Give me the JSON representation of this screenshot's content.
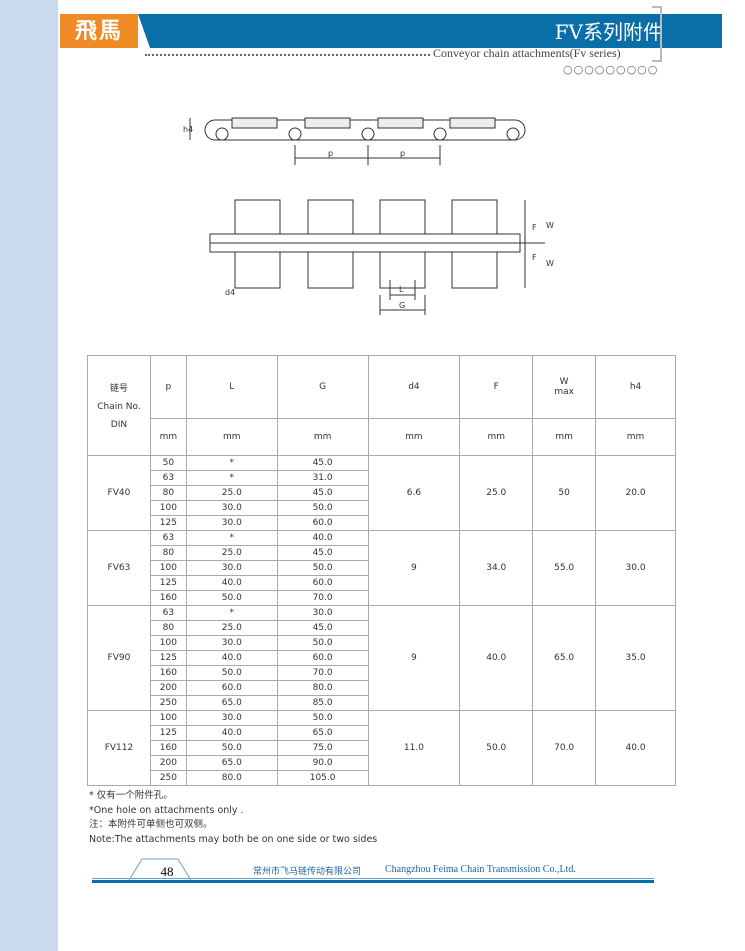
{
  "header": {
    "logo": "飛馬",
    "title": "FV系列附件",
    "subtitle": "Conveyor chain attachments(Fv series)",
    "circles": "○○○○○○○○○"
  },
  "drawing": {
    "labels": {
      "h4": "h4",
      "p": "p",
      "F": "F",
      "W": "W",
      "d4": "d4",
      "L": "L",
      "G": "G"
    }
  },
  "table": {
    "headers": {
      "chain_cn": "链号",
      "chain_en": "Chain No.",
      "din": "DIN",
      "p": "p",
      "L": "L",
      "G": "G",
      "d4": "d4",
      "F": "F",
      "W": "W",
      "W_sub": "max",
      "h4": "h4"
    },
    "unit": "mm",
    "groups": [
      {
        "chain": "FV40",
        "d4": "6.6",
        "F": "25.0",
        "W": "50",
        "h4": "20.0",
        "rows": [
          [
            "50",
            "*",
            "45.0"
          ],
          [
            "63",
            "*",
            "31.0"
          ],
          [
            "80",
            "25.0",
            "45.0"
          ],
          [
            "100",
            "30.0",
            "50.0"
          ],
          [
            "125",
            "30.0",
            "60.0"
          ]
        ]
      },
      {
        "chain": "FV63",
        "d4": "9",
        "F": "34.0",
        "W": "55.0",
        "h4": "30.0",
        "rows": [
          [
            "63",
            "*",
            "40.0"
          ],
          [
            "80",
            "25.0",
            "45.0"
          ],
          [
            "100",
            "30.0",
            "50.0"
          ],
          [
            "125",
            "40.0",
            "60.0"
          ],
          [
            "160",
            "50.0",
            "70.0"
          ]
        ]
      },
      {
        "chain": "FV90",
        "d4": "9",
        "F": "40.0",
        "W": "65.0",
        "h4": "35.0",
        "rows": [
          [
            "63",
            "*",
            "30.0"
          ],
          [
            "80",
            "25.0",
            "45.0"
          ],
          [
            "100",
            "30.0",
            "50.0"
          ],
          [
            "125",
            "40.0",
            "60.0"
          ],
          [
            "160",
            "50.0",
            "70.0"
          ],
          [
            "200",
            "60.0",
            "80.0"
          ],
          [
            "250",
            "65.0",
            "85.0"
          ]
        ]
      },
      {
        "chain": "FV112",
        "d4": "11.0",
        "F": "50.0",
        "W": "70.0",
        "h4": "40.0",
        "rows": [
          [
            "100",
            "30.0",
            "50.0"
          ],
          [
            "125",
            "40.0",
            "65.0"
          ],
          [
            "160",
            "50.0",
            "75.0"
          ],
          [
            "200",
            "65.0",
            "90.0"
          ],
          [
            "250",
            "80.0",
            "105.0"
          ]
        ]
      }
    ]
  },
  "notes": [
    "* 仅有一个附件孔。",
    "*One hole on attachments only .",
    "注：本附件可单侧也可双侧。",
    "Note:The attachments may both be on one side or two sides"
  ],
  "footer": {
    "page": "48",
    "company_cn": "常州市飞马链传动有限公司",
    "company_en": "Changzhou Feima Chain Transmission Co.,Ltd."
  }
}
